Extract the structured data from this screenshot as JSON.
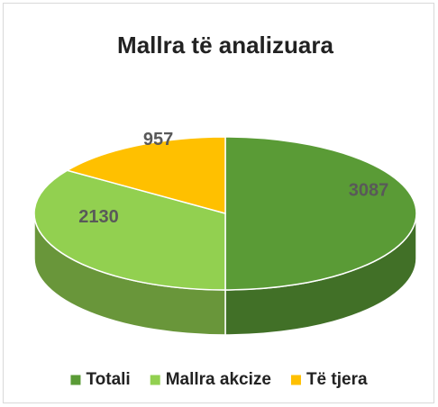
{
  "chart_data": {
    "type": "pie",
    "title": "Mallra të analizuara",
    "categories": [
      "Totali",
      "Mallra akcize",
      "Të tjera"
    ],
    "values": [
      3087,
      2130,
      957
    ],
    "colors": [
      "#5a9b36",
      "#92d050",
      "#ffc000"
    ],
    "legend": "bottom"
  }
}
